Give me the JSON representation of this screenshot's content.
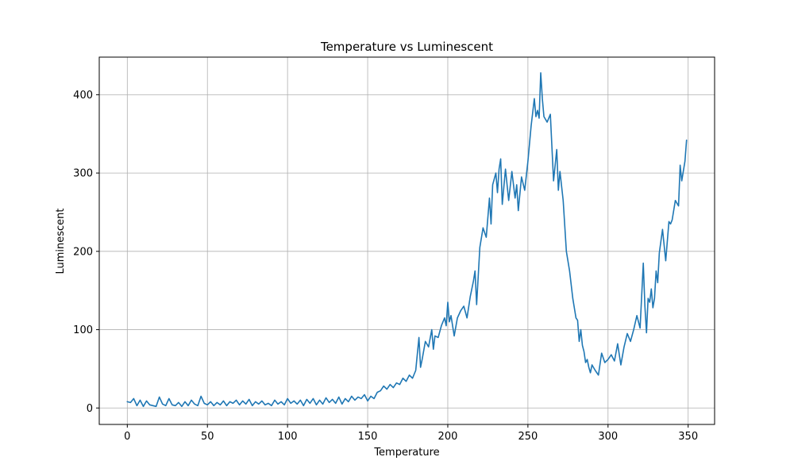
{
  "chart_data": {
    "type": "line",
    "title": "Temperature vs Luminescent",
    "xlabel": "Temperature",
    "ylabel": "Luminescent",
    "xlim": [
      -17.5,
      366.5
    ],
    "ylim": [
      -21,
      448
    ],
    "xticks": [
      0,
      50,
      100,
      150,
      200,
      250,
      300,
      350
    ],
    "yticks": [
      0,
      100,
      200,
      300,
      400
    ],
    "grid": true,
    "color": "#1f77b4",
    "series": [
      {
        "x": [
          0,
          2,
          4,
          6,
          8,
          10,
          12,
          14,
          16,
          18,
          20,
          22,
          24,
          26,
          28,
          30,
          32,
          34,
          36,
          38,
          40,
          42,
          44,
          46,
          48,
          50,
          52,
          54,
          56,
          58,
          60,
          62,
          64,
          66,
          68,
          70,
          72,
          74,
          76,
          78,
          80,
          82,
          84,
          86,
          88,
          90,
          92,
          94,
          96,
          98,
          100,
          102,
          104,
          106,
          108,
          110,
          112,
          114,
          116,
          118,
          120,
          122,
          124,
          126,
          128,
          130,
          132,
          134,
          136,
          138,
          140,
          142,
          144,
          146,
          148,
          150,
          152,
          154,
          156,
          158,
          160,
          162,
          164,
          166,
          168,
          170,
          172,
          174,
          176,
          178,
          180,
          182,
          183,
          184,
          186,
          188,
          190,
          191,
          192,
          194,
          196,
          198,
          199,
          200,
          201,
          202,
          204,
          206,
          208,
          210,
          212,
          214,
          216,
          217,
          218,
          220,
          222,
          224,
          226,
          227,
          228,
          230,
          231,
          232,
          233,
          234,
          236,
          238,
          240,
          242,
          243,
          244,
          246,
          248,
          250,
          252,
          254,
          255,
          256,
          257,
          258,
          259,
          260,
          262,
          264,
          266,
          268,
          269,
          270,
          272,
          274,
          276,
          278,
          280,
          281,
          282,
          283,
          284,
          285,
          286,
          287,
          288,
          289,
          290,
          292,
          294,
          296,
          298,
          300,
          302,
          304,
          306,
          308,
          310,
          312,
          314,
          316,
          318,
          320,
          322,
          323,
          324,
          325,
          326,
          327,
          328,
          329,
          330,
          331,
          332,
          334,
          336,
          338,
          339,
          340,
          342,
          344,
          345,
          346,
          348,
          349
        ],
        "y": [
          8,
          7,
          12,
          3,
          10,
          2,
          9,
          4,
          3,
          2,
          14,
          5,
          3,
          12,
          4,
          3,
          7,
          2,
          8,
          3,
          10,
          5,
          3,
          15,
          6,
          4,
          8,
          3,
          7,
          4,
          9,
          3,
          8,
          6,
          10,
          4,
          9,
          5,
          11,
          3,
          8,
          5,
          9,
          4,
          6,
          3,
          10,
          5,
          8,
          4,
          12,
          6,
          9,
          5,
          10,
          3,
          11,
          6,
          12,
          4,
          10,
          5,
          13,
          7,
          11,
          6,
          14,
          5,
          12,
          8,
          15,
          10,
          14,
          12,
          17,
          9,
          15,
          12,
          20,
          22,
          28,
          24,
          30,
          26,
          32,
          30,
          38,
          34,
          42,
          38,
          48,
          90,
          52,
          62,
          85,
          78,
          100,
          75,
          92,
          90,
          105,
          115,
          105,
          135,
          110,
          118,
          92,
          115,
          124,
          130,
          115,
          142,
          162,
          175,
          132,
          205,
          230,
          218,
          268,
          235,
          285,
          300,
          275,
          305,
          318,
          260,
          305,
          265,
          302,
          268,
          285,
          252,
          295,
          278,
          315,
          360,
          395,
          372,
          380,
          370,
          428,
          395,
          372,
          365,
          375,
          290,
          330,
          278,
          302,
          265,
          200,
          175,
          140,
          115,
          112,
          85,
          100,
          80,
          72,
          58,
          62,
          52,
          45,
          55,
          48,
          42,
          70,
          58,
          62,
          68,
          60,
          82,
          55,
          78,
          95,
          85,
          100,
          118,
          102,
          185,
          130,
          96,
          140,
          135,
          152,
          128,
          140,
          175,
          160,
          198,
          228,
          188,
          238,
          235,
          240,
          265,
          258,
          310,
          290,
          315,
          342
        ]
      }
    ]
  }
}
